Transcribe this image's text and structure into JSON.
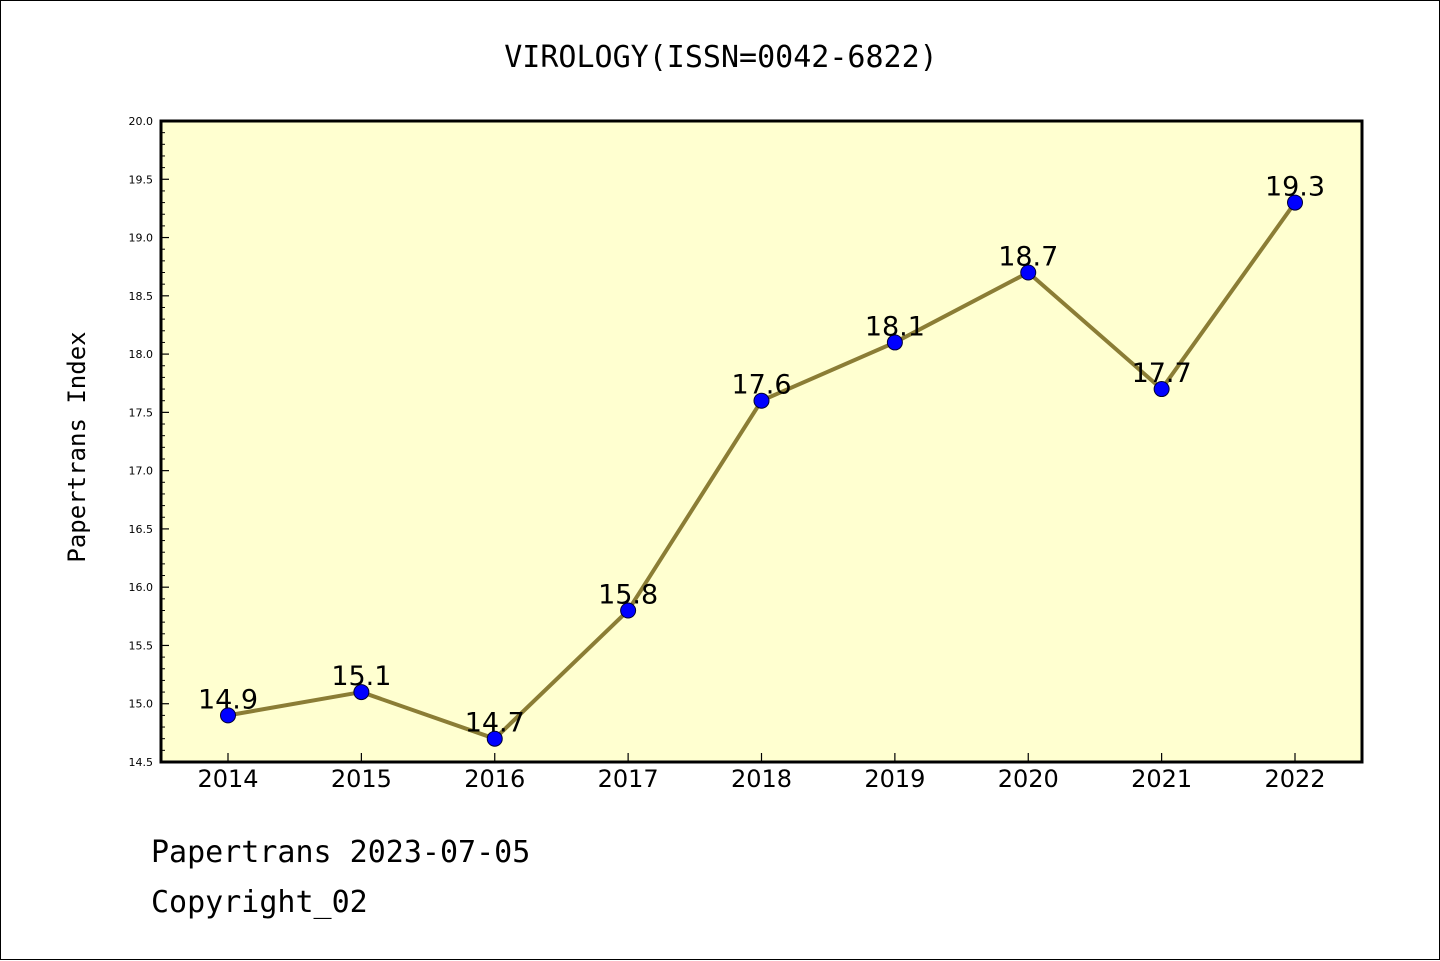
{
  "chart_data": {
    "type": "line",
    "title": "VIROLOGY(ISSN=0042-6822)",
    "xlabel": "",
    "ylabel": "Papertrans Index",
    "categories": [
      "2014",
      "2015",
      "2016",
      "2017",
      "2018",
      "2019",
      "2020",
      "2021",
      "2022"
    ],
    "series": [
      {
        "values": [
          14.9,
          15.1,
          14.7,
          15.8,
          17.6,
          18.1,
          18.7,
          17.7,
          19.3
        ],
        "data_labels": [
          "14.9",
          "15.1",
          "14.7",
          "15.8",
          "17.6",
          "18.1",
          "18.7",
          "17.7",
          "19.3"
        ]
      }
    ],
    "ylim": [
      14.5,
      20.0
    ],
    "y_ticks": [
      "14.5",
      "15.0",
      "15.5",
      "16.0",
      "16.5",
      "17.0",
      "17.5",
      "18.0",
      "18.5",
      "19.0",
      "19.5",
      "20.0"
    ],
    "grid": false,
    "legend": "none",
    "colors": {
      "plot_background": "#ffffd0",
      "line": "#8b7d35",
      "marker_fill": "#0000ff",
      "marker_edge": "#000033"
    }
  },
  "footer": {
    "line1": "Papertrans 2023-07-05",
    "line2": "Copyright_02"
  }
}
